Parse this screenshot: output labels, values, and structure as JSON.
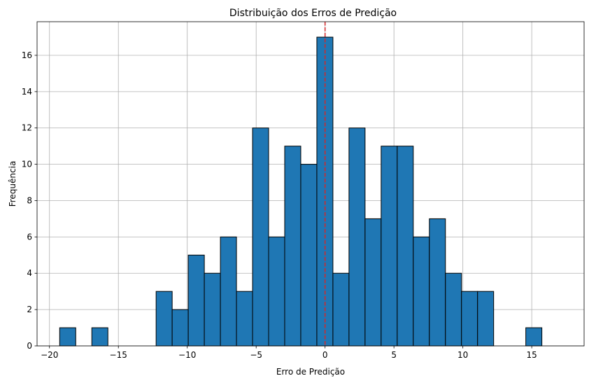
{
  "chart_data": {
    "type": "bar",
    "title": "Distribuição dos Erros de Predição",
    "xlabel": "Erro de Predição",
    "ylabel": "Frequência",
    "xlim": [
      -20.9,
      18.8
    ],
    "ylim": [
      0,
      17.85
    ],
    "xticks": [
      -20,
      -15,
      -10,
      -5,
      0,
      5,
      10,
      15
    ],
    "yticks": [
      0,
      2,
      4,
      6,
      8,
      10,
      12,
      14,
      16
    ],
    "grid": true,
    "bin_start": -19.26,
    "bin_width": 1.1665,
    "values": [
      1,
      0,
      1,
      0,
      0,
      0,
      3,
      2,
      5,
      4,
      6,
      3,
      12,
      6,
      11,
      10,
      17,
      4,
      12,
      7,
      11,
      11,
      6,
      7,
      4,
      3,
      3,
      0,
      0,
      1
    ],
    "reference_line": {
      "x": 0,
      "color": "#d62728",
      "style": "dashed"
    },
    "bar_color": "#1f77b4",
    "edge_color": "#000000"
  }
}
